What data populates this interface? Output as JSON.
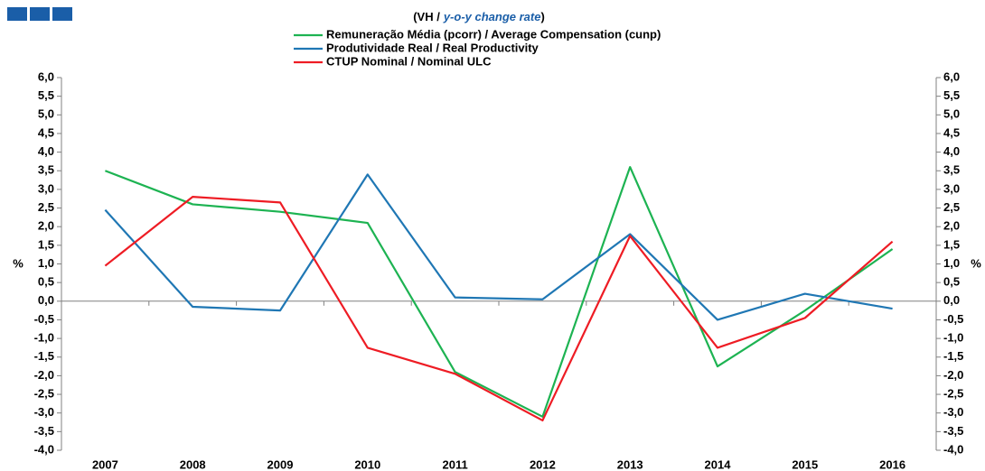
{
  "chart_data": {
    "type": "line",
    "title": [
      "(VH /",
      "y-o-y change rate",
      ")"
    ],
    "ylabel": "%",
    "y2label": "%",
    "categories": [
      "2007",
      "2008",
      "2009",
      "2010",
      "2011",
      "2012",
      "2013",
      "2014",
      "2015",
      "2016"
    ],
    "series": [
      {
        "name": "Remuneração Média (pcorr) / Average Compensation (cunp)",
        "color": "#1db352",
        "values": [
          3.5,
          2.6,
          2.4,
          2.1,
          -1.9,
          -3.1,
          3.6,
          -1.75,
          -0.25,
          1.4
        ]
      },
      {
        "name": "Produtividade Real / Real Productivity",
        "color": "#1f77b4",
        "values": [
          2.45,
          -0.15,
          -0.25,
          3.4,
          0.1,
          0.05,
          1.8,
          -0.5,
          0.2,
          -0.2
        ]
      },
      {
        "name": "CTUP Nominal / Nominal ULC",
        "color": "#ee1c24",
        "values": [
          0.95,
          2.8,
          2.65,
          -1.25,
          -1.95,
          -3.2,
          1.75,
          -1.25,
          -0.45,
          1.6
        ]
      }
    ],
    "ylim": [
      -4,
      6
    ],
    "yticks": [
      {
        "value": 6,
        "label": "6,0"
      },
      {
        "value": 5.5,
        "label": "5,5"
      },
      {
        "value": 5,
        "label": "5,0"
      },
      {
        "value": 4.5,
        "label": "4,5"
      },
      {
        "value": 4,
        "label": "4,0"
      },
      {
        "value": 3.5,
        "label": "3,5"
      },
      {
        "value": 3,
        "label": "3,0"
      },
      {
        "value": 2.5,
        "label": "2,5"
      },
      {
        "value": 2,
        "label": "2,0"
      },
      {
        "value": 1.5,
        "label": "1,5"
      },
      {
        "value": 1,
        "label": "1,0"
      },
      {
        "value": 0.5,
        "label": "0,5"
      },
      {
        "value": 0,
        "label": "0,0"
      },
      {
        "value": -0.5,
        "label": "-0,5"
      },
      {
        "value": -1,
        "label": "-1,0"
      },
      {
        "value": -1.5,
        "label": "-1,5"
      },
      {
        "value": -2,
        "label": "-2,0"
      },
      {
        "value": -2.5,
        "label": "-2,5"
      },
      {
        "value": -3,
        "label": "-3,0"
      },
      {
        "value": -3.5,
        "label": "-3,5"
      },
      {
        "value": -4,
        "label": "-4,0"
      }
    ],
    "y2lim": [
      -4,
      6
    ],
    "y2ticks": [
      {
        "value": 6,
        "label": "6,0"
      },
      {
        "value": 5.5,
        "label": "5,5"
      },
      {
        "value": 5,
        "label": "5,0"
      },
      {
        "value": 4.5,
        "label": "4,5"
      },
      {
        "value": 4,
        "label": "4,0"
      },
      {
        "value": 3.5,
        "label": "3,5"
      },
      {
        "value": 3,
        "label": "3,0"
      },
      {
        "value": 2.5,
        "label": "2,5"
      },
      {
        "value": 2,
        "label": "2,0"
      },
      {
        "value": 1.5,
        "label": "1,5"
      },
      {
        "value": 1,
        "label": "1,0"
      },
      {
        "value": 0.5,
        "label": "0,5"
      },
      {
        "value": 0,
        "label": "0,0"
      },
      {
        "value": -0.5,
        "label": "-0,5"
      },
      {
        "value": -1,
        "label": "-1,0"
      },
      {
        "value": -1.5,
        "label": "-1,5"
      },
      {
        "value": -2,
        "label": "-2,0"
      },
      {
        "value": -2.5,
        "label": "-2,5"
      },
      {
        "value": -3,
        "label": "-3,0"
      },
      {
        "value": -3.5,
        "label": "-3,5"
      },
      {
        "value": -4,
        "label": "-4,0"
      }
    ],
    "grid": false,
    "legend": "top"
  }
}
